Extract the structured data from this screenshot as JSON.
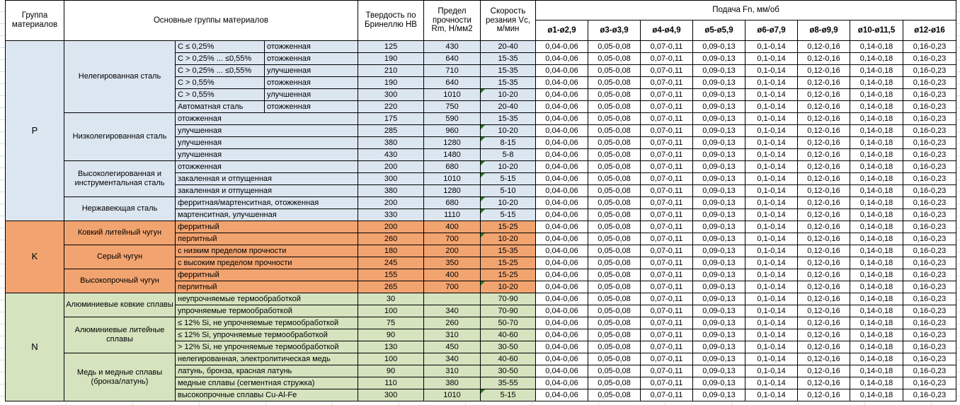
{
  "header": {
    "col_group": "Группа материалов",
    "col_main": "Основные группы материалов",
    "col_hardness": "Твердость по Бринеллю HB",
    "col_strength": "Предел прочности Rm, Н/мм2",
    "col_speed": "Скорость резания Vc, м/мин",
    "feed_title": "Подача Fn, мм/об",
    "feed_cols": [
      "ø1-ø2,9",
      "ø3-ø3,9",
      "ø4-ø4,9",
      "ø5-ø5,9",
      "ø6-ø7,9",
      "ø8-ø9,9",
      "ø10-ø11,5",
      "ø12-ø16"
    ]
  },
  "feed_values": [
    "0,04-0,06",
    "0,05-0,08",
    "0,07-0,11",
    "0,09-0,13",
    "0,1-0,14",
    "0,12-0,16",
    "0,14-0,18",
    "0,16-0,23"
  ],
  "colors": {
    "group_p": "#dce6f1",
    "group_k": "#f2a470",
    "group_n": "#d5e3bf",
    "note_flag": "#1e7d1e",
    "border": "#000000"
  },
  "groups": [
    {
      "code": "P",
      "color": "#dce6f1",
      "families": [
        {
          "name": "Нелегированная сталь",
          "rows": [
            {
              "sub1": "C ≤ 0,25%",
              "sub2": "отожженная",
              "hb": "125",
              "rm": "430",
              "vc": "20-40",
              "note": false
            },
            {
              "sub1": "C > 0,25% ... ≤0,55%",
              "sub2": "отожженная",
              "hb": "190",
              "rm": "640",
              "vc": "15-35",
              "note": false
            },
            {
              "sub1": "C > 0,25% ... ≤0,55%",
              "sub2": "улучшенная",
              "hb": "210",
              "rm": "710",
              "vc": "15-35",
              "note": false
            },
            {
              "sub1": "C > 0,55%",
              "sub2": "отожженная",
              "hb": "190",
              "rm": "640",
              "vc": "15-35",
              "note": false
            },
            {
              "sub1": "C > 0,55%",
              "sub2": "улучшенная",
              "hb": "300",
              "rm": "1010",
              "vc": "10-20",
              "note": true
            },
            {
              "sub1": "Автоматная сталь",
              "sub2": "отожженная",
              "hb": "220",
              "rm": "750",
              "vc": "20-40",
              "note": false
            }
          ]
        },
        {
          "name": "Низколегированная сталь",
          "rows": [
            {
              "desc": "отожженная",
              "hb": "175",
              "rm": "590",
              "vc": "15-35",
              "note": false
            },
            {
              "desc": "улучшенная",
              "hb": "285",
              "rm": "960",
              "vc": "10-20",
              "note": true
            },
            {
              "desc": "улучшенная",
              "hb": "380",
              "rm": "1280",
              "vc": "8-15",
              "note": true
            },
            {
              "desc": "улучшенная",
              "hb": "430",
              "rm": "1480",
              "vc": "5-8",
              "note": false
            }
          ]
        },
        {
          "name": "Высоколегированная и инструментальная сталь",
          "rows": [
            {
              "desc": "отожженная",
              "hb": "200",
              "rm": "680",
              "vc": "10-20",
              "note": true
            },
            {
              "desc": "закаленная и отпущенная",
              "hb": "300",
              "rm": "1010",
              "vc": "5-15",
              "note": true
            },
            {
              "desc": "закаленная и отпущенная",
              "hb": "380",
              "rm": "1280",
              "vc": "5-10",
              "note": false
            }
          ]
        },
        {
          "name": "Нержавеющая сталь",
          "rows": [
            {
              "desc": "ферритная/мартенситная, отожженная",
              "hb": "200",
              "rm": "680",
              "vc": "10-20",
              "note": true
            },
            {
              "desc": "мартенситная, улучшенная",
              "hb": "330",
              "rm": "1110",
              "vc": "5-15",
              "note": true
            }
          ]
        }
      ]
    },
    {
      "code": "K",
      "color": "#f2a470",
      "families": [
        {
          "name": "Ковкий литейный чугун",
          "rows": [
            {
              "desc": "ферритный",
              "hb": "200",
              "rm": "400",
              "vc": "15-25",
              "note": false
            },
            {
              "desc": "перлитный",
              "hb": "260",
              "rm": "700",
              "vc": "10-20",
              "note": true
            }
          ]
        },
        {
          "name": "Серый чугун",
          "rows": [
            {
              "desc": "с низким пределом прочности",
              "hb": "180",
              "rm": "200",
              "vc": "15-35",
              "note": false
            },
            {
              "desc": "с высоким пределом прочности",
              "hb": "245",
              "rm": "350",
              "vc": "15-25",
              "note": false
            }
          ]
        },
        {
          "name": "Высокопрочный чугун",
          "rows": [
            {
              "desc": "ферритный",
              "hb": "155",
              "rm": "400",
              "vc": "15-25",
              "note": false
            },
            {
              "desc": "перлитный",
              "hb": "265",
              "rm": "700",
              "vc": "10-20",
              "note": true
            }
          ]
        }
      ]
    },
    {
      "code": "N",
      "color": "#d5e3bf",
      "families": [
        {
          "name": "Алюминиевые ковкие сплавы",
          "rows": [
            {
              "desc": "неупрочняемые термообработкой",
              "hb": "30",
              "rm": "",
              "vc": "70-90",
              "note": false
            },
            {
              "desc": "упрочняемые термообработкой",
              "hb": "100",
              "rm": "340",
              "vc": "70-90",
              "note": false
            }
          ]
        },
        {
          "name": "Алюминиевые литейные сплавы",
          "rows": [
            {
              "desc": "≤ 12% Si, не упрочняемые термообработкой",
              "hb": "75",
              "rm": "260",
              "vc": "50-70",
              "note": false
            },
            {
              "desc": "≤ 12% Si, упрочняемые термообработкой",
              "hb": "90",
              "rm": "310",
              "vc": "40-60",
              "note": false
            },
            {
              "desc": "> 12% Si, не упрочняемые термообработкой",
              "hb": "130",
              "rm": "450",
              "vc": "30-50",
              "note": false
            }
          ]
        },
        {
          "name": "Медь и медные сплавы (бронза/латунь)",
          "rows": [
            {
              "desc": "нелегированная, электролитическая медь",
              "hb": "100",
              "rm": "340",
              "vc": "40-60",
              "note": false
            },
            {
              "desc": "латунь, бронза, красная латунь",
              "hb": "90",
              "rm": "310",
              "vc": "30-50",
              "note": false
            },
            {
              "desc": "медные сплавы (сегментная стружка)",
              "hb": "110",
              "rm": "380",
              "vc": "35-55",
              "note": false
            },
            {
              "desc": "высокопрочные сплавы Cu-Al-Fe",
              "hb": "300",
              "rm": "1010",
              "vc": "5-15",
              "note": true
            }
          ]
        }
      ]
    }
  ]
}
